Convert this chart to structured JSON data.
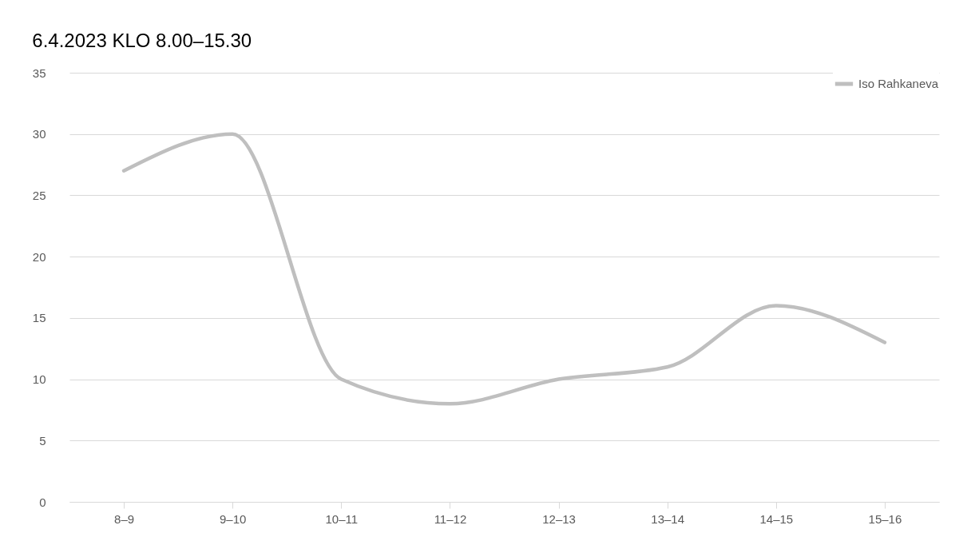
{
  "chart_data": {
    "type": "line",
    "title": "6.4.2023 KLO 8.00–15.30",
    "categories": [
      "8–9",
      "9–10",
      "10–11",
      "11–12",
      "12–13",
      "13–14",
      "14–15",
      "15–16"
    ],
    "series": [
      {
        "name": "Iso Rahkaneva",
        "color": "#bfbfbf",
        "values": [
          27,
          30,
          10,
          8,
          10,
          11,
          16,
          13
        ]
      }
    ],
    "ylim": [
      0,
      35
    ],
    "yticks": [
      0,
      5,
      10,
      15,
      20,
      25,
      30,
      35
    ],
    "grid": "y",
    "legend": "top right",
    "marker": "none",
    "line_style": "solid"
  }
}
